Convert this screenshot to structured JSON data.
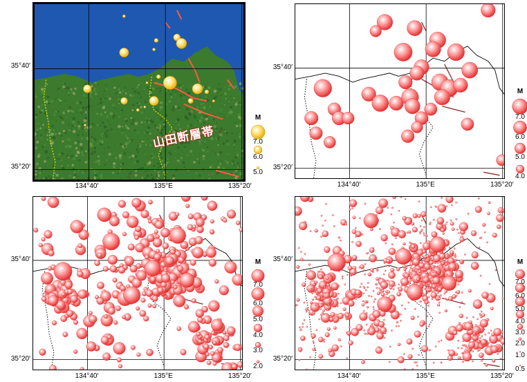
{
  "axes": {
    "x_ticks": [
      "134°40′",
      "135°E",
      "135°20′"
    ],
    "y_ticks": [
      "35°40′",
      "35°20′"
    ]
  },
  "fault_label": "山田断層帯",
  "legend_title": "M",
  "panels": [
    {
      "id": "top-left",
      "style": "satellite",
      "magnitudes": [
        "7.0",
        "6.0",
        "5.0"
      ],
      "quakes": [
        {
          "lon": 134.96,
          "lat": 35.76,
          "m": 5.3
        },
        {
          "lon": 134.95,
          "lat": 35.73,
          "m": 5.1
        },
        {
          "lon": 135.05,
          "lat": 35.77,
          "m": 5.8
        },
        {
          "lon": 135.07,
          "lat": 35.75,
          "m": 6.4
        },
        {
          "lon": 134.82,
          "lat": 35.72,
          "m": 6.2
        },
        {
          "lon": 134.82,
          "lat": 35.84,
          "m": 5.1
        },
        {
          "lon": 135.02,
          "lat": 35.62,
          "m": 6.9
        },
        {
          "lon": 135.14,
          "lat": 35.6,
          "m": 6.4
        },
        {
          "lon": 134.66,
          "lat": 35.6,
          "m": 6.0
        },
        {
          "lon": 134.82,
          "lat": 35.56,
          "m": 5.8
        },
        {
          "lon": 134.95,
          "lat": 35.56,
          "m": 6.2
        },
        {
          "lon": 134.92,
          "lat": 35.62,
          "m": 5.0
        },
        {
          "lon": 134.97,
          "lat": 35.64,
          "m": 5.3
        },
        {
          "lon": 135.11,
          "lat": 35.56,
          "m": 5.5
        },
        {
          "lon": 134.91,
          "lat": 35.54,
          "m": 5.0
        },
        {
          "lon": 134.88,
          "lat": 35.53,
          "m": 5.1
        },
        {
          "lon": 135.18,
          "lat": 35.59,
          "m": 5.3
        },
        {
          "lon": 135.21,
          "lat": 35.56,
          "m": 5.0
        },
        {
          "lon": 134.65,
          "lat": 35.48,
          "m": 5.0
        }
      ]
    },
    {
      "id": "top-right",
      "style": "outline",
      "magnitudes": [
        "7.0",
        "6.0",
        "5.0",
        "4.0"
      ],
      "quakes": [
        {
          "lon": 135.27,
          "lat": 35.86,
          "m": 5.0
        },
        {
          "lon": 134.82,
          "lat": 35.82,
          "m": 5.4
        },
        {
          "lon": 134.78,
          "lat": 35.79,
          "m": 4.2
        },
        {
          "lon": 134.95,
          "lat": 35.8,
          "m": 5.3
        },
        {
          "lon": 135.05,
          "lat": 35.76,
          "m": 5.6
        },
        {
          "lon": 134.9,
          "lat": 35.72,
          "m": 6.1
        },
        {
          "lon": 135.03,
          "lat": 35.73,
          "m": 5.4
        },
        {
          "lon": 135.13,
          "lat": 35.72,
          "m": 5.8
        },
        {
          "lon": 134.98,
          "lat": 35.67,
          "m": 5.2
        },
        {
          "lon": 135.06,
          "lat": 35.62,
          "m": 5.7
        },
        {
          "lon": 135.19,
          "lat": 35.66,
          "m": 5.5
        },
        {
          "lon": 134.96,
          "lat": 35.65,
          "m": 5.0
        },
        {
          "lon": 134.91,
          "lat": 35.62,
          "m": 4.8
        },
        {
          "lon": 134.55,
          "lat": 35.6,
          "m": 6.0
        },
        {
          "lon": 134.75,
          "lat": 35.58,
          "m": 5.0
        },
        {
          "lon": 134.8,
          "lat": 35.55,
          "m": 5.7
        },
        {
          "lon": 134.87,
          "lat": 35.55,
          "m": 5.0
        },
        {
          "lon": 134.93,
          "lat": 35.57,
          "m": 5.8
        },
        {
          "lon": 134.94,
          "lat": 35.54,
          "m": 5.3
        },
        {
          "lon": 135.1,
          "lat": 35.6,
          "m": 5.9
        },
        {
          "lon": 135.07,
          "lat": 35.57,
          "m": 5.4
        },
        {
          "lon": 135.15,
          "lat": 35.61,
          "m": 5.0
        },
        {
          "lon": 134.6,
          "lat": 35.53,
          "m": 4.6
        },
        {
          "lon": 134.62,
          "lat": 35.5,
          "m": 4.8
        },
        {
          "lon": 134.66,
          "lat": 35.5,
          "m": 4.4
        },
        {
          "lon": 134.5,
          "lat": 35.5,
          "m": 4.8
        },
        {
          "lon": 134.52,
          "lat": 35.45,
          "m": 4.6
        },
        {
          "lon": 134.58,
          "lat": 35.42,
          "m": 4.3
        },
        {
          "lon": 134.98,
          "lat": 35.5,
          "m": 4.7
        },
        {
          "lon": 134.92,
          "lat": 35.44,
          "m": 4.6
        },
        {
          "lon": 135.02,
          "lat": 35.53,
          "m": 4.5
        },
        {
          "lon": 134.96,
          "lat": 35.47,
          "m": 4.2
        },
        {
          "lon": 135.18,
          "lat": 35.48,
          "m": 4.5
        },
        {
          "lon": 135.33,
          "lat": 35.36,
          "m": 4.1
        }
      ]
    },
    {
      "id": "bottom-left",
      "style": "outline",
      "magnitudes": [
        "7.0",
        "6.0",
        "5.0",
        "4.0",
        "3.0",
        "2.0"
      ],
      "quakes": [
        {
          "lon": 134.74,
          "lat": 35.82,
          "m": 4.9
        },
        {
          "lon": 134.77,
          "lat": 35.73,
          "m": 5.8
        },
        {
          "lon": 134.56,
          "lat": 35.63,
          "m": 6.1
        },
        {
          "lon": 134.83,
          "lat": 35.54,
          "m": 5.3
        },
        {
          "lon": 134.86,
          "lat": 35.55,
          "m": 5.8
        },
        {
          "lon": 134.95,
          "lat": 35.64,
          "m": 5.5
        },
        {
          "lon": 135.06,
          "lat": 35.75,
          "m": 5.5
        },
        {
          "lon": 135.1,
          "lat": 35.6,
          "m": 5.1
        },
        {
          "lon": 134.62,
          "lat": 35.78,
          "m": 4.6
        },
        {
          "lon": 134.88,
          "lat": 35.86,
          "m": 3.6
        },
        {
          "lon": 135.21,
          "lat": 35.85,
          "m": 3.7
        }
      ],
      "swarm": {
        "seed": 11,
        "count": 420,
        "mmin": 2.0,
        "mmax": 4.4
      }
    },
    {
      "id": "bottom-right",
      "style": "outline",
      "magnitudes": [
        "7.0",
        "6.0",
        "5.0",
        "4.0",
        "3.0",
        "2.0",
        "1.0",
        "0.5"
      ],
      "quakes": [
        {
          "lon": 134.76,
          "lat": 35.8,
          "m": 5.1
        },
        {
          "lon": 134.61,
          "lat": 35.66,
          "m": 6.0
        },
        {
          "lon": 134.9,
          "lat": 35.68,
          "m": 5.5
        },
        {
          "lon": 135.05,
          "lat": 35.72,
          "m": 5.4
        },
        {
          "lon": 134.95,
          "lat": 35.56,
          "m": 5.5
        },
        {
          "lon": 135.1,
          "lat": 35.59,
          "m": 5.1
        },
        {
          "lon": 134.82,
          "lat": 35.52,
          "m": 5.2
        }
      ],
      "swarm": {
        "seed": 23,
        "count": 1100,
        "mmin": 0.5,
        "mmax": 3.6
      }
    }
  ]
}
